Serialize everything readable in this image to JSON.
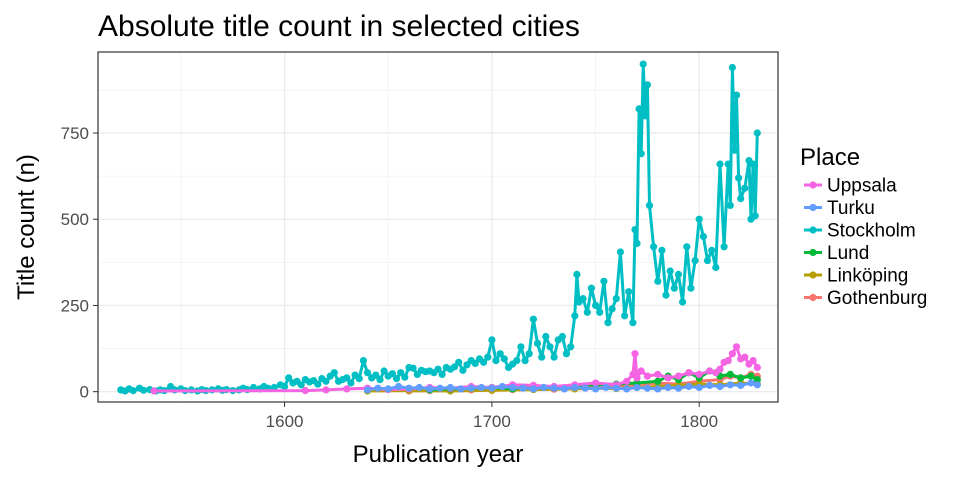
{
  "chart_data": {
    "type": "line",
    "title": "Absolute title count in selected cities",
    "xlabel": "Publication year",
    "ylabel": "Title count (n)",
    "xlim": [
      1510,
      1838
    ],
    "ylim": [
      -30,
      985
    ],
    "x_ticks": [
      1600,
      1700,
      1800
    ],
    "y_ticks": [
      0,
      250,
      500,
      750
    ],
    "grid": true,
    "legend_position": "right",
    "legend_title": "Place",
    "series": [
      {
        "name": "Gothenburg",
        "color": "#F8766D",
        "points": [
          [
            1660,
            2
          ],
          [
            1670,
            3
          ],
          [
            1680,
            4
          ],
          [
            1690,
            5
          ],
          [
            1700,
            4
          ],
          [
            1710,
            6
          ],
          [
            1720,
            8
          ],
          [
            1730,
            7
          ],
          [
            1740,
            10
          ],
          [
            1750,
            12
          ],
          [
            1760,
            15
          ],
          [
            1770,
            20
          ],
          [
            1780,
            25
          ],
          [
            1790,
            22
          ],
          [
            1800,
            30
          ],
          [
            1810,
            35
          ],
          [
            1815,
            45
          ],
          [
            1820,
            40
          ],
          [
            1825,
            50
          ],
          [
            1828,
            45
          ]
        ]
      },
      {
        "name": "Linköping",
        "color": "#B79F00",
        "points": [
          [
            1640,
            2
          ],
          [
            1660,
            3
          ],
          [
            1680,
            2
          ],
          [
            1700,
            4
          ],
          [
            1720,
            6
          ],
          [
            1740,
            8
          ],
          [
            1750,
            10
          ],
          [
            1760,
            9
          ],
          [
            1770,
            12
          ],
          [
            1780,
            15
          ],
          [
            1790,
            18
          ],
          [
            1800,
            22
          ],
          [
            1810,
            20
          ],
          [
            1820,
            25
          ],
          [
            1828,
            22
          ]
        ]
      },
      {
        "name": "Lund",
        "color": "#00BA38",
        "points": [
          [
            1670,
            5
          ],
          [
            1680,
            8
          ],
          [
            1690,
            10
          ],
          [
            1700,
            12
          ],
          [
            1710,
            8
          ],
          [
            1720,
            15
          ],
          [
            1730,
            12
          ],
          [
            1740,
            18
          ],
          [
            1750,
            20
          ],
          [
            1760,
            22
          ],
          [
            1770,
            25
          ],
          [
            1780,
            30
          ],
          [
            1785,
            45
          ],
          [
            1790,
            35
          ],
          [
            1795,
            55
          ],
          [
            1800,
            40
          ],
          [
            1805,
            60
          ],
          [
            1810,
            45
          ],
          [
            1815,
            50
          ],
          [
            1820,
            40
          ],
          [
            1825,
            45
          ],
          [
            1828,
            35
          ]
        ]
      },
      {
        "name": "Stockholm",
        "color": "#00BFC4",
        "points": [
          [
            1521,
            5
          ],
          [
            1523,
            2
          ],
          [
            1525,
            8
          ],
          [
            1527,
            3
          ],
          [
            1530,
            10
          ],
          [
            1532,
            4
          ],
          [
            1535,
            6
          ],
          [
            1538,
            2
          ],
          [
            1540,
            5
          ],
          [
            1542,
            3
          ],
          [
            1545,
            15
          ],
          [
            1547,
            5
          ],
          [
            1550,
            8
          ],
          [
            1552,
            3
          ],
          [
            1555,
            5
          ],
          [
            1558,
            2
          ],
          [
            1560,
            6
          ],
          [
            1562,
            3
          ],
          [
            1565,
            5
          ],
          [
            1568,
            8
          ],
          [
            1570,
            4
          ],
          [
            1572,
            6
          ],
          [
            1575,
            3
          ],
          [
            1578,
            5
          ],
          [
            1580,
            10
          ],
          [
            1582,
            6
          ],
          [
            1585,
            12
          ],
          [
            1588,
            8
          ],
          [
            1590,
            15
          ],
          [
            1592,
            10
          ],
          [
            1595,
            12
          ],
          [
            1598,
            20
          ],
          [
            1600,
            15
          ],
          [
            1602,
            40
          ],
          [
            1604,
            25
          ],
          [
            1606,
            30
          ],
          [
            1608,
            20
          ],
          [
            1610,
            35
          ],
          [
            1612,
            28
          ],
          [
            1614,
            32
          ],
          [
            1616,
            22
          ],
          [
            1618,
            38
          ],
          [
            1620,
            30
          ],
          [
            1622,
            45
          ],
          [
            1624,
            55
          ],
          [
            1626,
            30
          ],
          [
            1628,
            35
          ],
          [
            1630,
            40
          ],
          [
            1632,
            25
          ],
          [
            1634,
            48
          ],
          [
            1636,
            38
          ],
          [
            1638,
            90
          ],
          [
            1640,
            55
          ],
          [
            1642,
            40
          ],
          [
            1644,
            48
          ],
          [
            1646,
            35
          ],
          [
            1648,
            60
          ],
          [
            1650,
            45
          ],
          [
            1652,
            52
          ],
          [
            1654,
            38
          ],
          [
            1656,
            55
          ],
          [
            1658,
            42
          ],
          [
            1660,
            70
          ],
          [
            1662,
            68
          ],
          [
            1664,
            50
          ],
          [
            1666,
            62
          ],
          [
            1668,
            58
          ],
          [
            1670,
            60
          ],
          [
            1672,
            55
          ],
          [
            1674,
            65
          ],
          [
            1676,
            50
          ],
          [
            1678,
            70
          ],
          [
            1680,
            65
          ],
          [
            1682,
            72
          ],
          [
            1684,
            85
          ],
          [
            1686,
            62
          ],
          [
            1688,
            78
          ],
          [
            1690,
            90
          ],
          [
            1692,
            82
          ],
          [
            1694,
            95
          ],
          [
            1696,
            85
          ],
          [
            1698,
            100
          ],
          [
            1700,
            150
          ],
          [
            1702,
            90
          ],
          [
            1704,
            110
          ],
          [
            1706,
            95
          ],
          [
            1708,
            70
          ],
          [
            1710,
            80
          ],
          [
            1712,
            90
          ],
          [
            1714,
            130
          ],
          [
            1716,
            90
          ],
          [
            1718,
            110
          ],
          [
            1720,
            210
          ],
          [
            1722,
            140
          ],
          [
            1724,
            100
          ],
          [
            1726,
            160
          ],
          [
            1728,
            130
          ],
          [
            1730,
            100
          ],
          [
            1732,
            150
          ],
          [
            1734,
            160
          ],
          [
            1736,
            110
          ],
          [
            1738,
            130
          ],
          [
            1740,
            220
          ],
          [
            1741,
            340
          ],
          [
            1742,
            260
          ],
          [
            1744,
            270
          ],
          [
            1746,
            230
          ],
          [
            1748,
            300
          ],
          [
            1750,
            250
          ],
          [
            1752,
            230
          ],
          [
            1754,
            320
          ],
          [
            1756,
            200
          ],
          [
            1758,
            240
          ],
          [
            1760,
            270
          ],
          [
            1762,
            405
          ],
          [
            1764,
            220
          ],
          [
            1766,
            290
          ],
          [
            1768,
            200
          ],
          [
            1769,
            470
          ],
          [
            1770,
            430
          ],
          [
            1771,
            820
          ],
          [
            1772,
            690
          ],
          [
            1773,
            950
          ],
          [
            1774,
            800
          ],
          [
            1775,
            890
          ],
          [
            1776,
            540
          ],
          [
            1778,
            420
          ],
          [
            1780,
            320
          ],
          [
            1782,
            410
          ],
          [
            1784,
            280
          ],
          [
            1786,
            350
          ],
          [
            1788,
            300
          ],
          [
            1790,
            340
          ],
          [
            1792,
            260
          ],
          [
            1794,
            420
          ],
          [
            1796,
            300
          ],
          [
            1798,
            380
          ],
          [
            1800,
            500
          ],
          [
            1802,
            450
          ],
          [
            1804,
            380
          ],
          [
            1806,
            410
          ],
          [
            1808,
            360
          ],
          [
            1810,
            660
          ],
          [
            1812,
            420
          ],
          [
            1814,
            660
          ],
          [
            1815,
            540
          ],
          [
            1816,
            940
          ],
          [
            1817,
            700
          ],
          [
            1818,
            860
          ],
          [
            1819,
            620
          ],
          [
            1820,
            560
          ],
          [
            1822,
            590
          ],
          [
            1824,
            670
          ],
          [
            1825,
            500
          ],
          [
            1826,
            660
          ],
          [
            1827,
            510
          ],
          [
            1828,
            750
          ]
        ]
      },
      {
        "name": "Turku",
        "color": "#619CFF",
        "points": [
          [
            1640,
            5
          ],
          [
            1645,
            10
          ],
          [
            1650,
            8
          ],
          [
            1655,
            15
          ],
          [
            1660,
            10
          ],
          [
            1665,
            12
          ],
          [
            1670,
            8
          ],
          [
            1675,
            10
          ],
          [
            1680,
            12
          ],
          [
            1685,
            8
          ],
          [
            1690,
            10
          ],
          [
            1695,
            12
          ],
          [
            1700,
            10
          ],
          [
            1705,
            15
          ],
          [
            1710,
            12
          ],
          [
            1715,
            10
          ],
          [
            1720,
            8
          ],
          [
            1725,
            12
          ],
          [
            1730,
            10
          ],
          [
            1735,
            8
          ],
          [
            1740,
            12
          ],
          [
            1745,
            10
          ],
          [
            1750,
            8
          ],
          [
            1755,
            12
          ],
          [
            1760,
            10
          ],
          [
            1765,
            8
          ],
          [
            1770,
            12
          ],
          [
            1775,
            10
          ],
          [
            1780,
            8
          ],
          [
            1785,
            12
          ],
          [
            1790,
            10
          ],
          [
            1795,
            15
          ],
          [
            1800,
            12
          ],
          [
            1805,
            18
          ],
          [
            1810,
            15
          ],
          [
            1815,
            20
          ],
          [
            1820,
            18
          ],
          [
            1825,
            25
          ],
          [
            1828,
            20
          ]
        ]
      },
      {
        "name": "Uppsala",
        "color": "#F564E3",
        "points": [
          [
            1537,
            2
          ],
          [
            1610,
            3
          ],
          [
            1620,
            5
          ],
          [
            1630,
            8
          ],
          [
            1640,
            10
          ],
          [
            1650,
            6
          ],
          [
            1660,
            8
          ],
          [
            1670,
            12
          ],
          [
            1680,
            10
          ],
          [
            1690,
            15
          ],
          [
            1700,
            12
          ],
          [
            1710,
            20
          ],
          [
            1720,
            18
          ],
          [
            1730,
            15
          ],
          [
            1740,
            20
          ],
          [
            1750,
            25
          ],
          [
            1760,
            20
          ],
          [
            1765,
            30
          ],
          [
            1768,
            50
          ],
          [
            1769,
            110
          ],
          [
            1770,
            40
          ],
          [
            1772,
            60
          ],
          [
            1775,
            45
          ],
          [
            1780,
            50
          ],
          [
            1785,
            40
          ],
          [
            1790,
            45
          ],
          [
            1795,
            55
          ],
          [
            1800,
            50
          ],
          [
            1805,
            60
          ],
          [
            1808,
            55
          ],
          [
            1810,
            65
          ],
          [
            1812,
            85
          ],
          [
            1814,
            90
          ],
          [
            1816,
            110
          ],
          [
            1818,
            130
          ],
          [
            1820,
            95
          ],
          [
            1822,
            100
          ],
          [
            1824,
            80
          ],
          [
            1826,
            90
          ],
          [
            1828,
            70
          ]
        ]
      }
    ]
  }
}
